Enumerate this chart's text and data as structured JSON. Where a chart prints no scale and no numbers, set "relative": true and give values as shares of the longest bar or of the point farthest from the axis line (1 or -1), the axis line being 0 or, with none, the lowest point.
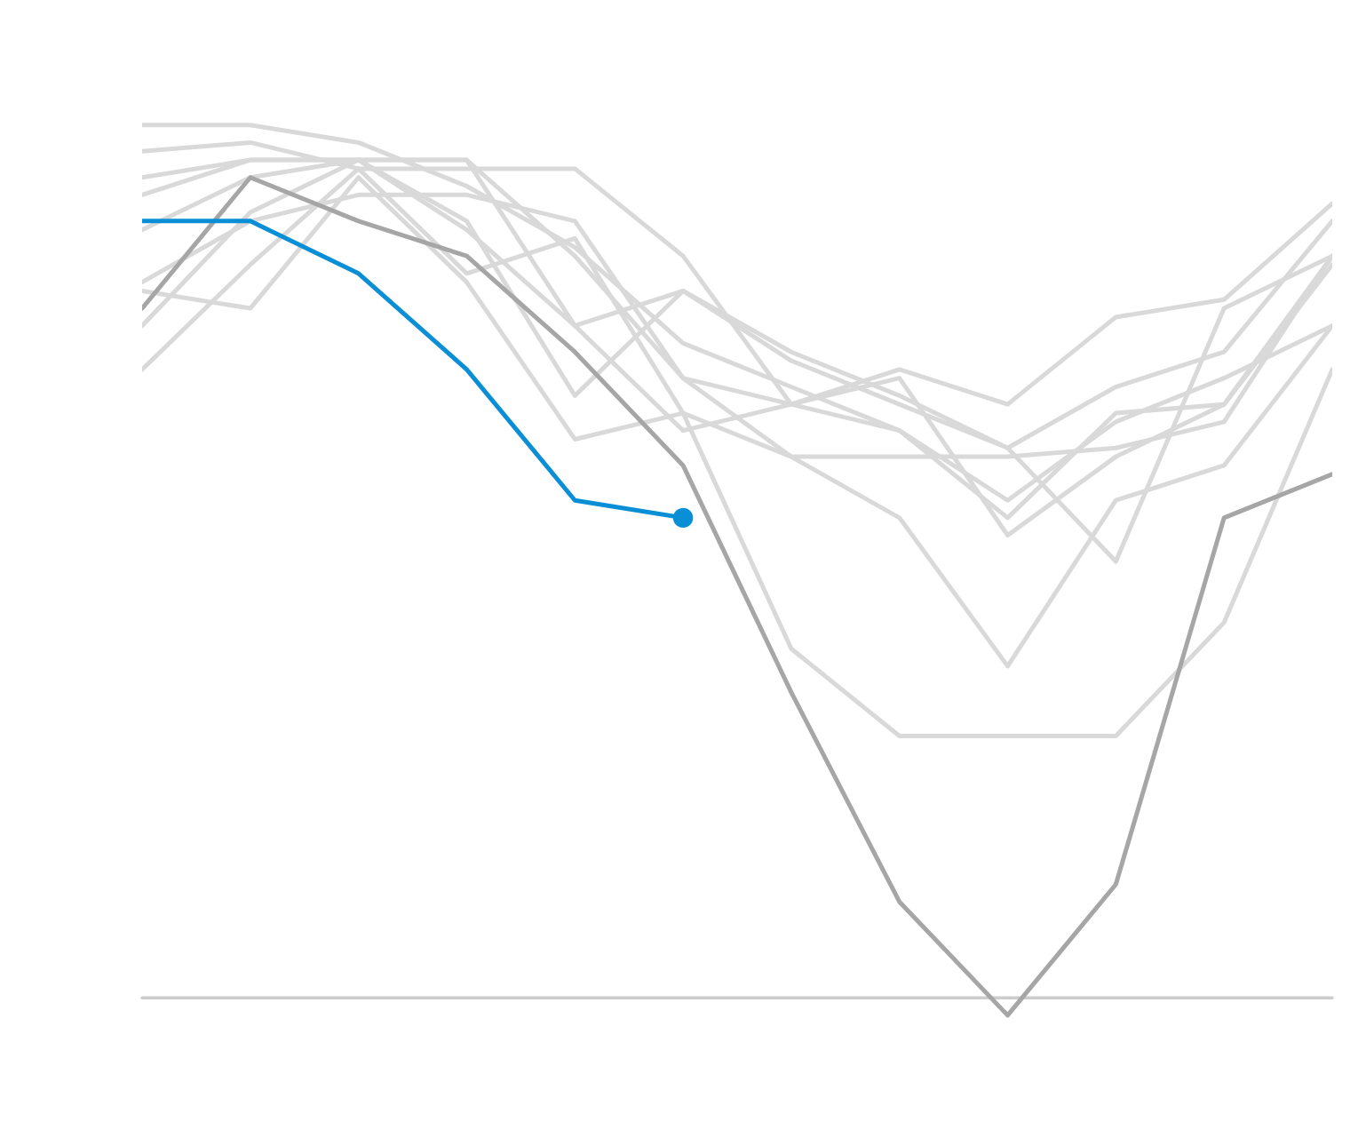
{
  "chart_data": {
    "type": "line",
    "relative": true,
    "legend": false,
    "marker": "none",
    "categories": [
      null,
      null,
      null,
      null,
      null,
      null,
      null,
      null,
      null,
      null,
      null,
      null
    ],
    "series": [
      {
        "color": "#d9d9d9",
        "values": [
          1.0,
          1.0,
          0.98,
          0.93,
          0.86,
          0.75,
          0.7,
          0.65,
          0.57,
          0.66,
          0.71,
          0.77
        ]
      },
      {
        "color": "#d9d9d9",
        "values": [
          0.97,
          0.98,
          0.95,
          0.95,
          0.95,
          0.85,
          0.68,
          0.72,
          0.68,
          0.78,
          0.8,
          0.91
        ]
      },
      {
        "color": "#d9d9d9",
        "values": [
          0.94,
          0.96,
          0.96,
          0.96,
          0.85,
          0.71,
          0.62,
          0.62,
          0.62,
          0.63,
          0.66,
          0.85
        ]
      },
      {
        "color": "#d9d9d9",
        "values": [
          0.92,
          0.96,
          0.96,
          0.96,
          0.77,
          0.81,
          0.74,
          0.69,
          0.63,
          0.7,
          0.74,
          0.89
        ]
      },
      {
        "color": "#d9d9d9",
        "values": [
          0.88,
          0.94,
          0.96,
          0.88,
          0.77,
          0.65,
          0.68,
          0.71,
          0.53,
          0.62,
          0.68,
          0.85
        ]
      },
      {
        "color": "#d9d9d9",
        "values": [
          0.82,
          0.89,
          0.92,
          0.92,
          0.89,
          0.71,
          0.68,
          0.65,
          0.55,
          0.67,
          0.68,
          0.84
        ]
      },
      {
        "color": "#d9d9d9",
        "values": [
          0.72,
          0.84,
          0.95,
          0.83,
          0.87,
          0.67,
          0.4,
          0.3,
          0.3,
          0.3,
          0.43,
          0.72
        ]
      },
      {
        "color": "#d9d9d9",
        "values": [
          0.81,
          0.79,
          0.94,
          0.82,
          0.64,
          0.67,
          0.62,
          0.55,
          0.38,
          0.57,
          0.61,
          0.77
        ]
      },
      {
        "color": "#d9d9d9",
        "values": [
          0.77,
          0.9,
          0.96,
          0.89,
          0.69,
          0.81,
          0.73,
          0.68,
          0.63,
          0.5,
          0.79,
          0.85
        ]
      },
      {
        "color": "#a6a6a6",
        "values": [
          0.79,
          0.94,
          0.89,
          0.85,
          0.74,
          0.61,
          0.35,
          0.11,
          -0.02,
          0.13,
          0.55,
          0.6
        ]
      },
      {
        "color": "#0a8fd6",
        "values": [
          0.89,
          0.89,
          0.83,
          0.72,
          0.57,
          0.55,
          null,
          null,
          null,
          null,
          null,
          null
        ]
      }
    ]
  }
}
